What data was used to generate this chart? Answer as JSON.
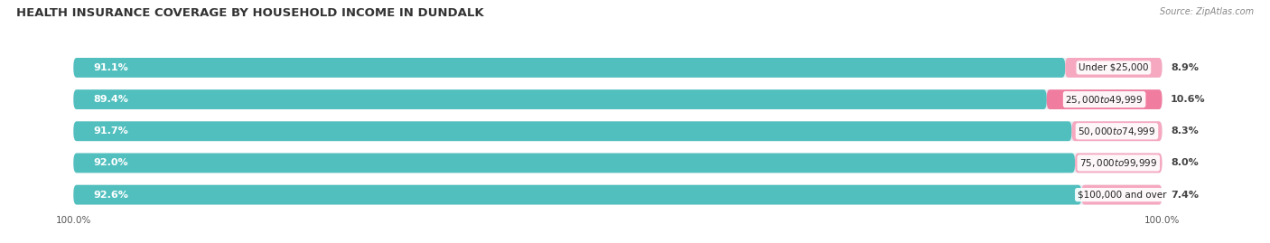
{
  "title": "HEALTH INSURANCE COVERAGE BY HOUSEHOLD INCOME IN DUNDALK",
  "source": "Source: ZipAtlas.com",
  "categories": [
    "Under $25,000",
    "$25,000 to $49,999",
    "$50,000 to $74,999",
    "$75,000 to $99,999",
    "$100,000 and over"
  ],
  "with_coverage": [
    91.1,
    89.4,
    91.7,
    92.0,
    92.6
  ],
  "without_coverage": [
    8.9,
    10.6,
    8.3,
    8.0,
    7.4
  ],
  "color_with": "#52BFBF",
  "color_without": "#F07CA0",
  "color_without_light": "#F5A8C0",
  "bar_height": 0.62,
  "bg_color": "#ffffff",
  "bar_bg": "#e8ecf0",
  "title_fontsize": 9.5,
  "label_fontsize": 8,
  "legend_fontsize": 8,
  "axis_label_fontsize": 7.5,
  "source_fontsize": 7
}
